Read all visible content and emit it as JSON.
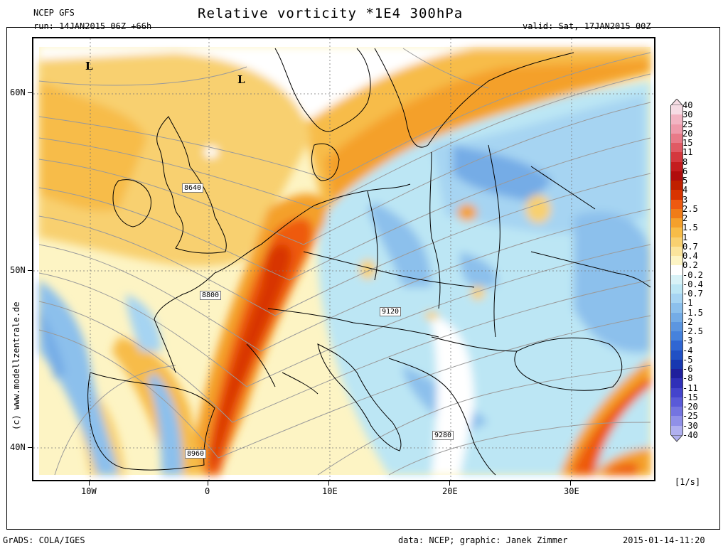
{
  "header": {
    "model": "NCEP GFS",
    "run": "run: 14JAN2015 06Z +66h",
    "title": "Relative vorticity *1E4 300hPa",
    "valid": "valid: Sat, 17JAN2015 00Z"
  },
  "axes": {
    "lat_ticks": [
      "60N",
      "50N",
      "40N"
    ],
    "lon_ticks": [
      "10W",
      "0",
      "10E",
      "20E",
      "30E"
    ]
  },
  "map_labels": {
    "contours": [
      "8640",
      "8800",
      "9120",
      "9280",
      "8960"
    ],
    "lows": [
      "L",
      "L"
    ]
  },
  "legend": {
    "levels": [
      "40",
      "30",
      "25",
      "20",
      "15",
      "11",
      "8",
      "6",
      "5",
      "4",
      "3",
      "2.5",
      "2",
      "1.5",
      "1",
      "0.7",
      "0.4",
      "0.2",
      "-0.2",
      "-0.4",
      "-0.7",
      "-1",
      "-1.5",
      "-2",
      "-2.5",
      "-3",
      "-4",
      "-5",
      "-6",
      "-8",
      "-11",
      "-15",
      "-20",
      "-25",
      "-30",
      "-40"
    ],
    "colors": [
      "#f6dce4",
      "#f2b4c2",
      "#ee9aaa",
      "#e87a88",
      "#e05a64",
      "#d4383e",
      "#c41c1e",
      "#b00c0c",
      "#c02000",
      "#d83400",
      "#ee5a10",
      "#f07c18",
      "#f4a02c",
      "#f7bc48",
      "#f8d070",
      "#fbe49c",
      "#fdf4c4",
      "#ffffff",
      "#d8f2f7",
      "#bce6f4",
      "#a6d4f2",
      "#8cc0ec",
      "#74ace6",
      "#5c96e0",
      "#4682dc",
      "#3066d2",
      "#2050c4",
      "#1838b0",
      "#20209c",
      "#3030b8",
      "#4444cc",
      "#5a5ad8",
      "#7474e0",
      "#9090e8",
      "#b0b0f0"
    ],
    "units": "[1/s]"
  },
  "footer": {
    "left": "GrADS: COLA/IGES",
    "credit": "data: NCEP; graphic: Janek Zimmer",
    "timestamp": "2015-01-14-11:20",
    "watermark": "(c) www.modellzentrale.de"
  }
}
